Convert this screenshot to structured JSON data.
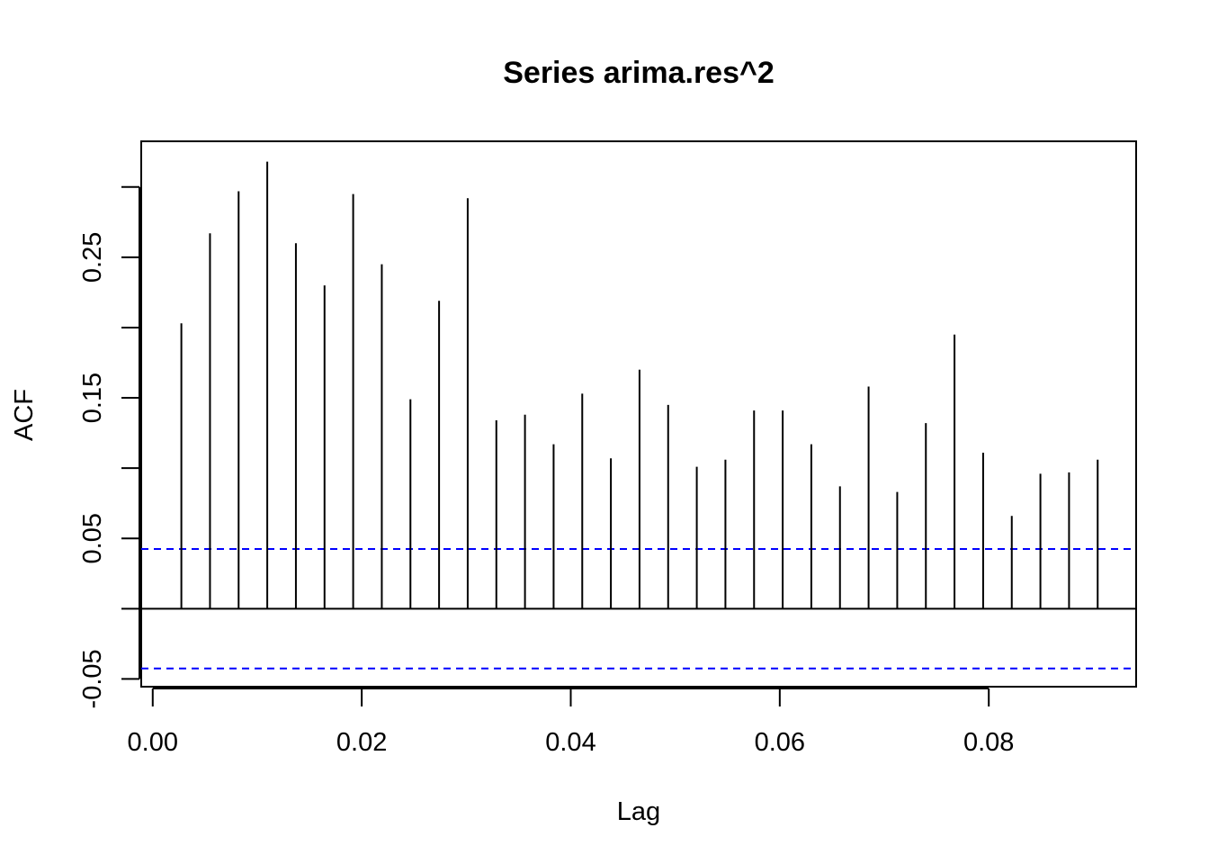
{
  "chart_data": {
    "type": "bar",
    "title": "Series arima.res^2",
    "xlabel": "Lag",
    "ylabel": "ACF",
    "xlim": [
      -0.0011,
      0.0941
    ],
    "ylim": [
      -0.0555,
      0.3325
    ],
    "x_ticks": [
      "0.00",
      "0.02",
      "0.04",
      "0.06",
      "0.08"
    ],
    "y_ticks": [
      "-0.05",
      "0.05",
      "0.15",
      "0.25"
    ],
    "y_minor_ticks": [
      0.0,
      0.1,
      0.2,
      0.3
    ],
    "lags": [
      0.00274,
      0.00548,
      0.00822,
      0.01096,
      0.0137,
      0.01644,
      0.01918,
      0.02192,
      0.02466,
      0.0274,
      0.03014,
      0.03288,
      0.03562,
      0.03836,
      0.0411,
      0.04384,
      0.04658,
      0.04932,
      0.05206,
      0.0548,
      0.05754,
      0.06028,
      0.06302,
      0.06576,
      0.0685,
      0.07124,
      0.07398,
      0.07672,
      0.07946,
      0.0822,
      0.08494,
      0.08768,
      0.09042
    ],
    "values": [
      0.203,
      0.267,
      0.297,
      0.318,
      0.26,
      0.23,
      0.295,
      0.245,
      0.149,
      0.219,
      0.292,
      0.134,
      0.138,
      0.117,
      0.153,
      0.107,
      0.17,
      0.145,
      0.101,
      0.106,
      0.141,
      0.141,
      0.117,
      0.087,
      0.158,
      0.083,
      0.132,
      0.195,
      0.111,
      0.066,
      0.096,
      0.097,
      0.106
    ],
    "confidence_bound": 0.0425,
    "colors": {
      "bars": "#000000",
      "confidence": "#0000ff",
      "zero_line": "#000000"
    }
  }
}
